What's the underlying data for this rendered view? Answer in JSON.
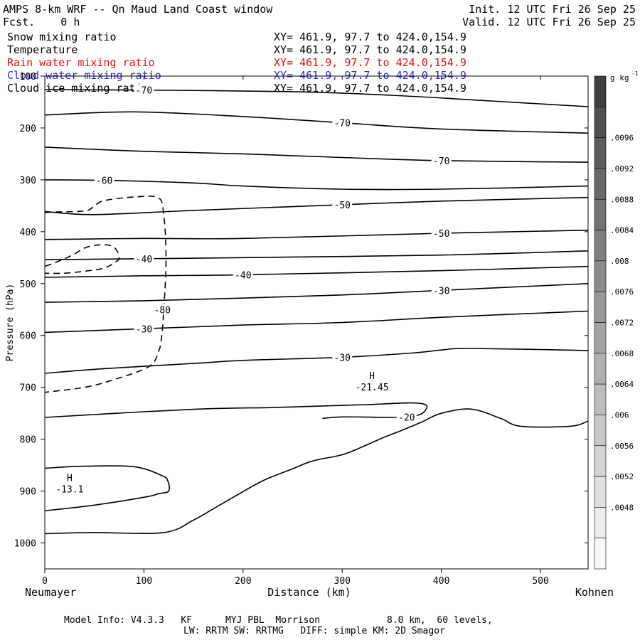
{
  "header": {
    "title": "AMPS 8-km WRF -- Qn Maud Land Coast window",
    "fcst_label": "Fcst.",
    "fcst_value": "0 h",
    "init": "Init. 12 UTC Fri 26 Sep 25",
    "valid": "Valid. 12 UTC Fri 26 Sep 25"
  },
  "legend": [
    {
      "name": "Snow mixing ratio",
      "xy": "XY= 461.9, 97.7 to 424.0,154.9",
      "color": "#000000"
    },
    {
      "name": "Temperature",
      "xy": "XY= 461.9, 97.7 to 424.0,154.9",
      "color": "#000000"
    },
    {
      "name": "Rain water mixing ratio",
      "xy": "XY= 461.9, 97.7 to 424.0,154.9",
      "color": "#e01010"
    },
    {
      "name": "Cloud water mixing ratio",
      "xy": "XY= 461.9, 97.7 to 424.0,154.9",
      "color": "#2a2ad8"
    },
    {
      "name": "Cloud ice mixing ratio",
      "xy": "XY= 461.9, 97.7 to 424.0,154.9",
      "color": "#000000"
    }
  ],
  "footer": {
    "line1": "Model Info: V4.3.3   KF      MYJ PBL  Morrison            8.0 km,  60 levels,",
    "line2": "LW: RRTM SW: RRTMG   DIFF: simple KM: 2D Smagor"
  },
  "chart_data": {
    "type": "contour",
    "title": "AMPS 8-km WRF -- Qn Maud Land Coast window",
    "xlabel": "Distance (km)",
    "ylabel": "Pressure (hPa)",
    "x_start_label": "Neumayer",
    "x_end_label": "Kohnen",
    "xlim": [
      0,
      548
    ],
    "ylim": [
      1050,
      100
    ],
    "x_ticks": [
      0,
      100,
      200,
      300,
      400,
      500
    ],
    "y_ticks": [
      100,
      200,
      300,
      400,
      500,
      600,
      700,
      800,
      900,
      1000
    ],
    "colorbar": {
      "unit": "g kg",
      "unit_exp": "-1",
      "ticks": [
        ".0096",
        ".0092",
        ".0088",
        ".0084",
        ".008",
        ".0076",
        ".0072",
        ".0068",
        ".0064",
        ".006",
        ".0056",
        ".0052",
        ".0048"
      ],
      "colors": [
        "#404040",
        "#505050",
        "#5c5c5c",
        "#686868",
        "#747474",
        "#808080",
        "#8c8c8c",
        "#989898",
        "#a4a4a4",
        "#b0b0b0",
        "#bcbcbc",
        "#c8c8c8",
        "#d4d4d4",
        "#e0e0e0",
        "#ececec",
        "#f8f8f8"
      ]
    },
    "temperature_contours": [
      {
        "label": "-70",
        "points": [
          [
            0,
            126
          ],
          [
            100,
            127
          ],
          [
            250,
            130
          ],
          [
            350,
            137
          ],
          [
            450,
            148
          ],
          [
            548,
            159
          ]
        ]
      },
      {
        "label": "-70",
        "points": [
          [
            0,
            175
          ],
          [
            90,
            169
          ],
          [
            200,
            178
          ],
          [
            300,
            190
          ],
          [
            400,
            202
          ],
          [
            548,
            210
          ]
        ]
      },
      {
        "label": "-70",
        "points": [
          [
            0,
            237
          ],
          [
            100,
            245
          ],
          [
            200,
            250
          ],
          [
            300,
            257
          ],
          [
            400,
            263
          ],
          [
            548,
            266
          ]
        ]
      },
      {
        "label": "-60",
        "points": [
          [
            0,
            300
          ],
          [
            60,
            301
          ],
          [
            150,
            306
          ],
          [
            200,
            312
          ],
          [
            300,
            318
          ],
          [
            400,
            318
          ],
          [
            548,
            312
          ]
        ]
      },
      {
        "label": "-50",
        "points": [
          [
            0,
            361
          ],
          [
            50,
            367
          ],
          [
            150,
            359
          ],
          [
            300,
            348
          ],
          [
            400,
            341
          ],
          [
            548,
            334
          ]
        ]
      },
      {
        "label": "-50",
        "points": [
          [
            0,
            415
          ],
          [
            100,
            413
          ],
          [
            200,
            413
          ],
          [
            400,
            403
          ],
          [
            548,
            397
          ]
        ]
      },
      {
        "label": "-40",
        "points": [
          [
            0,
            454
          ],
          [
            100,
            452
          ],
          [
            200,
            450
          ],
          [
            400,
            445
          ],
          [
            548,
            437
          ]
        ]
      },
      {
        "label": "-40",
        "points": [
          [
            0,
            488
          ],
          [
            100,
            485
          ],
          [
            200,
            483
          ],
          [
            400,
            475
          ],
          [
            548,
            467
          ]
        ]
      },
      {
        "label": "-30",
        "points": [
          [
            0,
            536
          ],
          [
            100,
            533
          ],
          [
            200,
            528
          ],
          [
            300,
            522
          ],
          [
            400,
            513
          ],
          [
            548,
            500
          ]
        ]
      },
      {
        "label": "-30",
        "points": [
          [
            0,
            594
          ],
          [
            100,
            587
          ],
          [
            200,
            580
          ],
          [
            300,
            575
          ],
          [
            400,
            565
          ],
          [
            548,
            553
          ]
        ]
      },
      {
        "label": "-30",
        "points": [
          [
            0,
            673
          ],
          [
            60,
            664
          ],
          [
            150,
            654
          ],
          [
            200,
            648
          ],
          [
            300,
            642
          ],
          [
            370,
            634
          ],
          [
            400,
            628
          ],
          [
            430,
            625
          ],
          [
            548,
            629
          ]
        ]
      },
      {
        "label": "-20",
        "points": [
          [
            0,
            758
          ],
          [
            100,
            747
          ],
          [
            170,
            741
          ],
          [
            230,
            739
          ],
          [
            280,
            736
          ],
          [
            330,
            733
          ],
          [
            370,
            730
          ],
          [
            385,
            735
          ],
          [
            380,
            751
          ],
          [
            365,
            757
          ],
          [
            350,
            758
          ],
          [
            300,
            757
          ],
          [
            280,
            760
          ]
        ]
      },
      {
        "label": "",
        "points": [
          [
            0,
            856
          ],
          [
            40,
            852
          ],
          [
            90,
            853
          ],
          [
            118,
            870
          ],
          [
            124,
            880
          ],
          [
            125,
            900
          ],
          [
            115,
            905
          ],
          [
            100,
            912
          ],
          [
            50,
            927
          ],
          [
            0,
            938
          ]
        ]
      },
      {
        "label": "",
        "points": [
          [
            0,
            982
          ],
          [
            50,
            980
          ],
          [
            120,
            980
          ],
          [
            150,
            956
          ],
          [
            170,
            934
          ],
          [
            190,
            912
          ],
          [
            220,
            880
          ],
          [
            250,
            857
          ],
          [
            270,
            842
          ],
          [
            300,
            830
          ],
          [
            320,
            815
          ],
          [
            340,
            798
          ],
          [
            360,
            783
          ],
          [
            380,
            767
          ],
          [
            400,
            750
          ],
          [
            430,
            742
          ],
          [
            460,
            760
          ],
          [
            480,
            775
          ],
          [
            530,
            775
          ],
          [
            548,
            765
          ]
        ]
      }
    ],
    "snow_contours": [
      {
        "style": "dashed",
        "label": "-80",
        "points": [
          [
            -2,
            710
          ],
          [
            40,
            700
          ],
          [
            70,
            685
          ],
          [
            105,
            660
          ],
          [
            115,
            630
          ],
          [
            118,
            600
          ],
          [
            120,
            550
          ],
          [
            122,
            480
          ],
          [
            122,
            420
          ],
          [
            120,
            370
          ],
          [
            115,
            335
          ],
          [
            90,
            333
          ],
          [
            60,
            340
          ],
          [
            50,
            350
          ],
          [
            40,
            360
          ],
          [
            0,
            363
          ],
          [
            -2,
            370
          ]
        ]
      },
      {
        "style": "dashed",
        "label": "",
        "points": [
          [
            -2,
            480
          ],
          [
            20,
            480
          ],
          [
            45,
            475
          ],
          [
            60,
            470
          ],
          [
            70,
            460
          ],
          [
            75,
            450
          ],
          [
            70,
            430
          ],
          [
            58,
            425
          ],
          [
            42,
            430
          ],
          [
            28,
            445
          ],
          [
            10,
            460
          ],
          [
            -2,
            468
          ]
        ]
      }
    ],
    "highs": [
      {
        "label": "H",
        "value": "-13.1",
        "x": 25,
        "p": 892
      },
      {
        "label": "H",
        "value": "-21.45",
        "x": 330,
        "p": 695
      }
    ]
  }
}
